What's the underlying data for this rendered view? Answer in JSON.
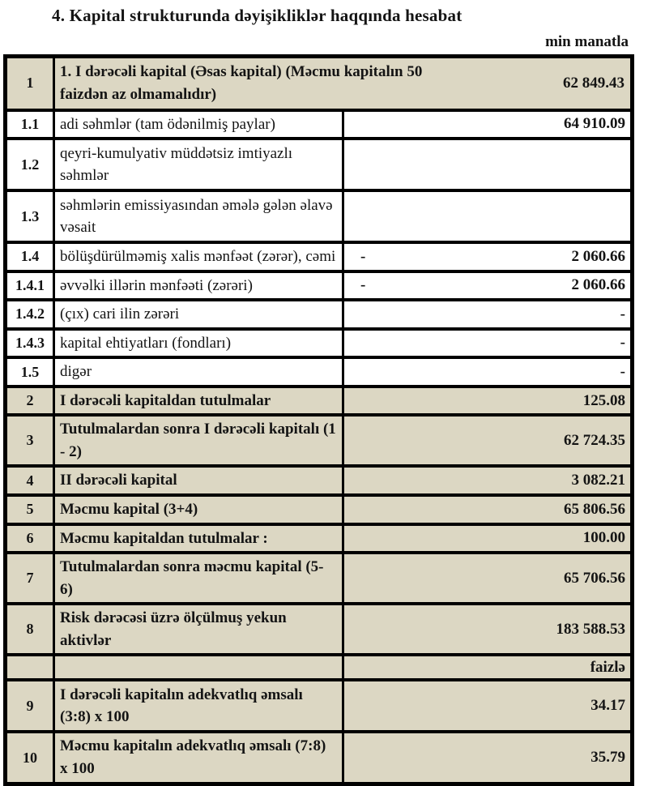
{
  "title": "4. Kapital strukturunda dəyişikliklər haqqında hesabat",
  "unit_label": "min manatla",
  "colors": {
    "highlight_bg": "#dcd7c3",
    "border": "#000000",
    "text": "#141414"
  },
  "table": {
    "rows": [
      {
        "no": "1",
        "label": "1. I dərəcəli kapital (Əsas kapital) (Məcmu kapitalın 50 faizdən az olmamalıdır)",
        "value": "62 849.43",
        "highlight": true,
        "merged": true,
        "size": "xtall"
      },
      {
        "no": "1.1",
        "label": "adi səhmlər (tam ödənilmiş paylar)",
        "value": "64 910.09",
        "highlight": false
      },
      {
        "no": "1.2",
        "label": "qeyri-kumulyativ müddətsiz imtiyazlı səhmlər",
        "value": "",
        "highlight": false,
        "size": "tall"
      },
      {
        "no": "1.3",
        "label": "səhmlərin emissiyasından əmələ gələn  əlavə vəsait",
        "value": "",
        "highlight": false,
        "size": "tall"
      },
      {
        "no": "1.4",
        "label": "bölüşdürülməmiş xalis mənfəət (zərər), cəmi",
        "sign": "-",
        "value": "2 060.66",
        "highlight": false
      },
      {
        "no": "1.4.1",
        "label": "əvvəlki illərin mənfəəti (zərəri)",
        "sign": "-",
        "value": "2 060.66",
        "highlight": false
      },
      {
        "no": "1.4.2",
        "label": "(çıx) cari ilin zərəri",
        "value": "-",
        "highlight": false
      },
      {
        "no": "1.4.3",
        "label": "kapital ehtiyatları (fondları)",
        "value": "-",
        "highlight": false
      },
      {
        "no": "1.5",
        "label": "digər",
        "value": "-",
        "highlight": false
      },
      {
        "no": "2",
        "label": "I dərəcəli kapitaldan  tutulmalar",
        "value": "125.08",
        "highlight": true
      },
      {
        "no": "3",
        "label": "Tutulmalardan  sonra I dərəcəli kapitalı (1 - 2)",
        "value": "62 724.35",
        "highlight": true
      },
      {
        "no": "4",
        "label": "II dərəcəli  kapital",
        "value": "3 082.21",
        "highlight": true
      },
      {
        "no": "5",
        "label": "Məcmu kapital (3+4)",
        "value": "65 806.56",
        "highlight": true
      },
      {
        "no": "6",
        "label": "Məcmu kapitaldan tutulmalar :",
        "value": "100.00",
        "highlight": true
      },
      {
        "no": "7",
        "label": "Tutulmalardan sonra məcmu kapital (5-6)",
        "value": "65 706.56",
        "highlight": true
      },
      {
        "no": "8",
        "label": "Risk dərəcəsi üzrə ölçülmuş  yekun aktivlər",
        "value": "183 588.53",
        "highlight": true
      },
      {
        "no": "",
        "label": "",
        "value": "faizlə",
        "highlight": true
      },
      {
        "no": "9",
        "label": "I dərəcəli  kapitalın  adekvatlıq əmsalı (3:8) x 100",
        "value": "34.17",
        "highlight": true,
        "size": "tall"
      },
      {
        "no": "10",
        "label": "Məcmu kapitalın  adekvatlıq  əmsalı (7:8) x 100",
        "value": "35.79",
        "highlight": true,
        "size": "tall"
      }
    ]
  }
}
